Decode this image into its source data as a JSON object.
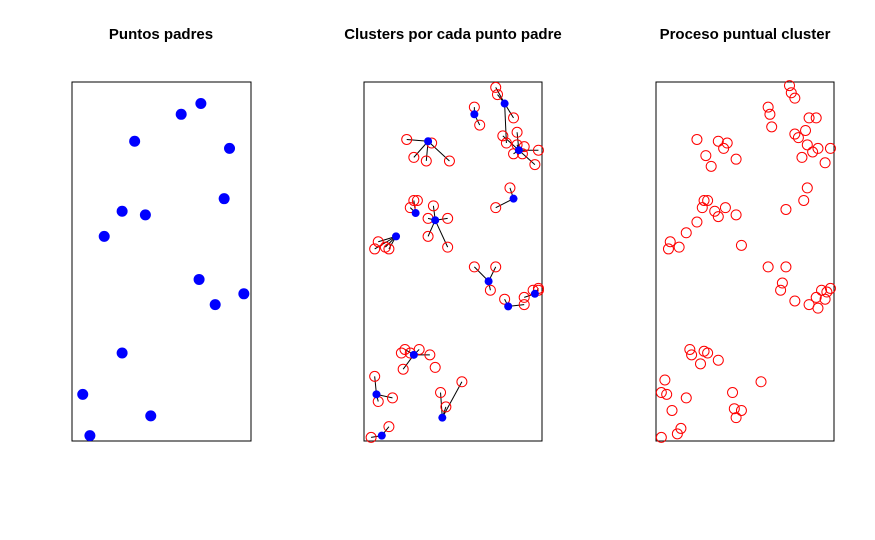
{
  "colors": {
    "parent": "#0000ff",
    "offspring": "#ff0000",
    "frame": "#000000",
    "link": "#000000"
  },
  "chart_data": [
    {
      "type": "scatter",
      "title": "Puntos padres",
      "xlim": [
        0,
        1
      ],
      "ylim": [
        0,
        2
      ],
      "series": [
        {
          "marker": "filled-circle",
          "color": "#0000ff",
          "points": [
            [
              0.72,
              1.88
            ],
            [
              0.61,
              1.82
            ],
            [
              0.35,
              1.67
            ],
            [
              0.88,
              1.63
            ],
            [
              0.85,
              1.35
            ],
            [
              0.28,
              1.28
            ],
            [
              0.41,
              1.26
            ],
            [
              0.18,
              1.14
            ],
            [
              0.71,
              0.9
            ],
            [
              0.96,
              0.82
            ],
            [
              0.8,
              0.76
            ],
            [
              0.28,
              0.49
            ],
            [
              0.06,
              0.26
            ],
            [
              0.44,
              0.14
            ],
            [
              0.1,
              0.03
            ]
          ]
        }
      ]
    },
    {
      "type": "scatter",
      "title": "Clusters por cada punto padre",
      "xlim": [
        0,
        1
      ],
      "ylim": [
        0,
        2
      ],
      "series": [
        {
          "marker": "filled-circle",
          "color": "#0000ff",
          "points": [
            [
              0.79,
              1.88
            ],
            [
              0.62,
              1.82
            ],
            [
              0.36,
              1.67
            ],
            [
              0.87,
              1.62
            ],
            [
              0.84,
              1.35
            ],
            [
              0.29,
              1.27
            ],
            [
              0.4,
              1.23
            ],
            [
              0.18,
              1.14
            ],
            [
              0.7,
              0.89
            ],
            [
              0.96,
              0.82
            ],
            [
              0.81,
              0.75
            ],
            [
              0.28,
              0.48
            ],
            [
              0.07,
              0.26
            ],
            [
              0.44,
              0.13
            ],
            [
              0.1,
              0.03
            ]
          ]
        },
        {
          "marker": "open-circle",
          "color": "#ff0000",
          "points": [
            [
              0.74,
              1.97
            ],
            [
              0.75,
              1.93
            ],
            [
              0.62,
              1.86
            ],
            [
              0.84,
              1.8
            ],
            [
              0.86,
              1.72
            ],
            [
              0.78,
              1.7
            ],
            [
              0.8,
              1.66
            ],
            [
              0.65,
              1.76
            ],
            [
              0.86,
              1.65
            ],
            [
              0.9,
              1.64
            ],
            [
              0.98,
              1.62
            ],
            [
              0.96,
              1.54
            ],
            [
              0.84,
              1.6
            ],
            [
              0.89,
              1.6
            ],
            [
              0.24,
              1.68
            ],
            [
              0.28,
              1.58
            ],
            [
              0.35,
              1.56
            ],
            [
              0.48,
              1.56
            ],
            [
              0.38,
              1.66
            ],
            [
              0.82,
              1.41
            ],
            [
              0.74,
              1.3
            ],
            [
              0.28,
              1.34
            ],
            [
              0.3,
              1.34
            ],
            [
              0.26,
              1.3
            ],
            [
              0.39,
              1.31
            ],
            [
              0.36,
              1.24
            ],
            [
              0.47,
              1.24
            ],
            [
              0.36,
              1.14
            ],
            [
              0.47,
              1.08
            ],
            [
              0.08,
              1.11
            ],
            [
              0.12,
              1.08
            ],
            [
              0.06,
              1.07
            ],
            [
              0.14,
              1.07
            ],
            [
              0.62,
              0.97
            ],
            [
              0.74,
              0.97
            ],
            [
              0.71,
              0.84
            ],
            [
              0.79,
              0.79
            ],
            [
              0.9,
              0.8
            ],
            [
              0.95,
              0.84
            ],
            [
              0.98,
              0.84
            ],
            [
              0.98,
              0.85
            ],
            [
              0.9,
              0.76
            ],
            [
              0.23,
              0.51
            ],
            [
              0.31,
              0.51
            ],
            [
              0.37,
              0.48
            ],
            [
              0.21,
              0.49
            ],
            [
              0.26,
              0.49
            ],
            [
              0.22,
              0.4
            ],
            [
              0.4,
              0.41
            ],
            [
              0.06,
              0.36
            ],
            [
              0.08,
              0.22
            ],
            [
              0.16,
              0.24
            ],
            [
              0.43,
              0.27
            ],
            [
              0.55,
              0.33
            ],
            [
              0.46,
              0.19
            ],
            [
              0.14,
              0.08
            ],
            [
              0.04,
              0.02
            ]
          ]
        }
      ]
    },
    {
      "type": "scatter",
      "title": "Proceso puntual  cluster",
      "xlim": [
        0,
        1
      ],
      "ylim": [
        0,
        2
      ],
      "series": [
        {
          "marker": "open-circle",
          "color": "#ff0000",
          "points": [
            [
              0.75,
              1.98
            ],
            [
              0.76,
              1.94
            ],
            [
              0.78,
              1.91
            ],
            [
              0.63,
              1.86
            ],
            [
              0.64,
              1.82
            ],
            [
              0.86,
              1.8
            ],
            [
              0.9,
              1.8
            ],
            [
              0.65,
              1.75
            ],
            [
              0.84,
              1.73
            ],
            [
              0.78,
              1.71
            ],
            [
              0.8,
              1.69
            ],
            [
              0.85,
              1.65
            ],
            [
              0.91,
              1.63
            ],
            [
              0.88,
              1.61
            ],
            [
              0.98,
              1.63
            ],
            [
              0.82,
              1.58
            ],
            [
              0.95,
              1.55
            ],
            [
              0.23,
              1.68
            ],
            [
              0.35,
              1.67
            ],
            [
              0.4,
              1.66
            ],
            [
              0.38,
              1.63
            ],
            [
              0.28,
              1.59
            ],
            [
              0.45,
              1.57
            ],
            [
              0.31,
              1.53
            ],
            [
              0.85,
              1.41
            ],
            [
              0.83,
              1.34
            ],
            [
              0.73,
              1.29
            ],
            [
              0.27,
              1.34
            ],
            [
              0.29,
              1.34
            ],
            [
              0.26,
              1.3
            ],
            [
              0.33,
              1.28
            ],
            [
              0.39,
              1.3
            ],
            [
              0.35,
              1.25
            ],
            [
              0.45,
              1.26
            ],
            [
              0.23,
              1.22
            ],
            [
              0.17,
              1.16
            ],
            [
              0.08,
              1.11
            ],
            [
              0.13,
              1.08
            ],
            [
              0.07,
              1.07
            ],
            [
              0.48,
              1.09
            ],
            [
              0.63,
              0.97
            ],
            [
              0.73,
              0.97
            ],
            [
              0.71,
              0.88
            ],
            [
              0.7,
              0.84
            ],
            [
              0.78,
              0.78
            ],
            [
              0.86,
              0.76
            ],
            [
              0.95,
              0.79
            ],
            [
              0.9,
              0.8
            ],
            [
              0.93,
              0.84
            ],
            [
              0.98,
              0.85
            ],
            [
              0.96,
              0.83
            ],
            [
              0.91,
              0.74
            ],
            [
              0.19,
              0.51
            ],
            [
              0.27,
              0.5
            ],
            [
              0.2,
              0.48
            ],
            [
              0.29,
              0.49
            ],
            [
              0.35,
              0.45
            ],
            [
              0.25,
              0.43
            ],
            [
              0.59,
              0.33
            ],
            [
              0.05,
              0.34
            ],
            [
              0.06,
              0.26
            ],
            [
              0.03,
              0.27
            ],
            [
              0.17,
              0.24
            ],
            [
              0.43,
              0.27
            ],
            [
              0.09,
              0.17
            ],
            [
              0.44,
              0.18
            ],
            [
              0.48,
              0.17
            ],
            [
              0.45,
              0.13
            ],
            [
              0.14,
              0.07
            ],
            [
              0.12,
              0.04
            ],
            [
              0.03,
              0.02
            ]
          ]
        }
      ]
    }
  ],
  "links": [
    [
      0.79,
      1.88,
      0.74,
      1.97
    ],
    [
      0.79,
      1.88,
      0.75,
      1.93
    ],
    [
      0.79,
      1.88,
      0.84,
      1.8
    ],
    [
      0.79,
      1.88,
      0.8,
      1.66
    ],
    [
      0.62,
      1.82,
      0.62,
      1.86
    ],
    [
      0.62,
      1.82,
      0.65,
      1.76
    ],
    [
      0.87,
      1.62,
      0.86,
      1.72
    ],
    [
      0.87,
      1.62,
      0.78,
      1.7
    ],
    [
      0.87,
      1.62,
      0.86,
      1.65
    ],
    [
      0.87,
      1.62,
      0.98,
      1.62
    ],
    [
      0.87,
      1.62,
      0.96,
      1.54
    ],
    [
      0.87,
      1.62,
      0.84,
      1.6
    ],
    [
      0.36,
      1.67,
      0.24,
      1.68
    ],
    [
      0.36,
      1.67,
      0.28,
      1.58
    ],
    [
      0.36,
      1.67,
      0.35,
      1.56
    ],
    [
      0.36,
      1.67,
      0.48,
      1.56
    ],
    [
      0.36,
      1.67,
      0.38,
      1.66
    ],
    [
      0.84,
      1.35,
      0.82,
      1.41
    ],
    [
      0.84,
      1.35,
      0.74,
      1.3
    ],
    [
      0.29,
      1.27,
      0.28,
      1.34
    ],
    [
      0.29,
      1.27,
      0.26,
      1.3
    ],
    [
      0.4,
      1.23,
      0.39,
      1.31
    ],
    [
      0.4,
      1.23,
      0.36,
      1.24
    ],
    [
      0.4,
      1.23,
      0.47,
      1.24
    ],
    [
      0.4,
      1.23,
      0.36,
      1.14
    ],
    [
      0.4,
      1.23,
      0.47,
      1.08
    ],
    [
      0.18,
      1.14,
      0.08,
      1.11
    ],
    [
      0.18,
      1.14,
      0.12,
      1.08
    ],
    [
      0.18,
      1.14,
      0.06,
      1.07
    ],
    [
      0.18,
      1.14,
      0.14,
      1.07
    ],
    [
      0.7,
      0.89,
      0.62,
      0.97
    ],
    [
      0.7,
      0.89,
      0.74,
      0.97
    ],
    [
      0.7,
      0.89,
      0.71,
      0.84
    ],
    [
      0.96,
      0.82,
      0.9,
      0.8
    ],
    [
      0.96,
      0.82,
      0.98,
      0.84
    ],
    [
      0.96,
      0.82,
      0.98,
      0.85
    ],
    [
      0.81,
      0.75,
      0.79,
      0.79
    ],
    [
      0.81,
      0.75,
      0.9,
      0.76
    ],
    [
      0.28,
      0.48,
      0.23,
      0.51
    ],
    [
      0.28,
      0.48,
      0.31,
      0.51
    ],
    [
      0.28,
      0.48,
      0.37,
      0.48
    ],
    [
      0.28,
      0.48,
      0.22,
      0.4
    ],
    [
      0.07,
      0.26,
      0.06,
      0.36
    ],
    [
      0.07,
      0.26,
      0.08,
      0.22
    ],
    [
      0.07,
      0.26,
      0.16,
      0.24
    ],
    [
      0.44,
      0.13,
      0.43,
      0.27
    ],
    [
      0.44,
      0.13,
      0.55,
      0.33
    ],
    [
      0.44,
      0.13,
      0.46,
      0.19
    ],
    [
      0.1,
      0.03,
      0.14,
      0.08
    ],
    [
      0.1,
      0.03,
      0.04,
      0.02
    ]
  ]
}
